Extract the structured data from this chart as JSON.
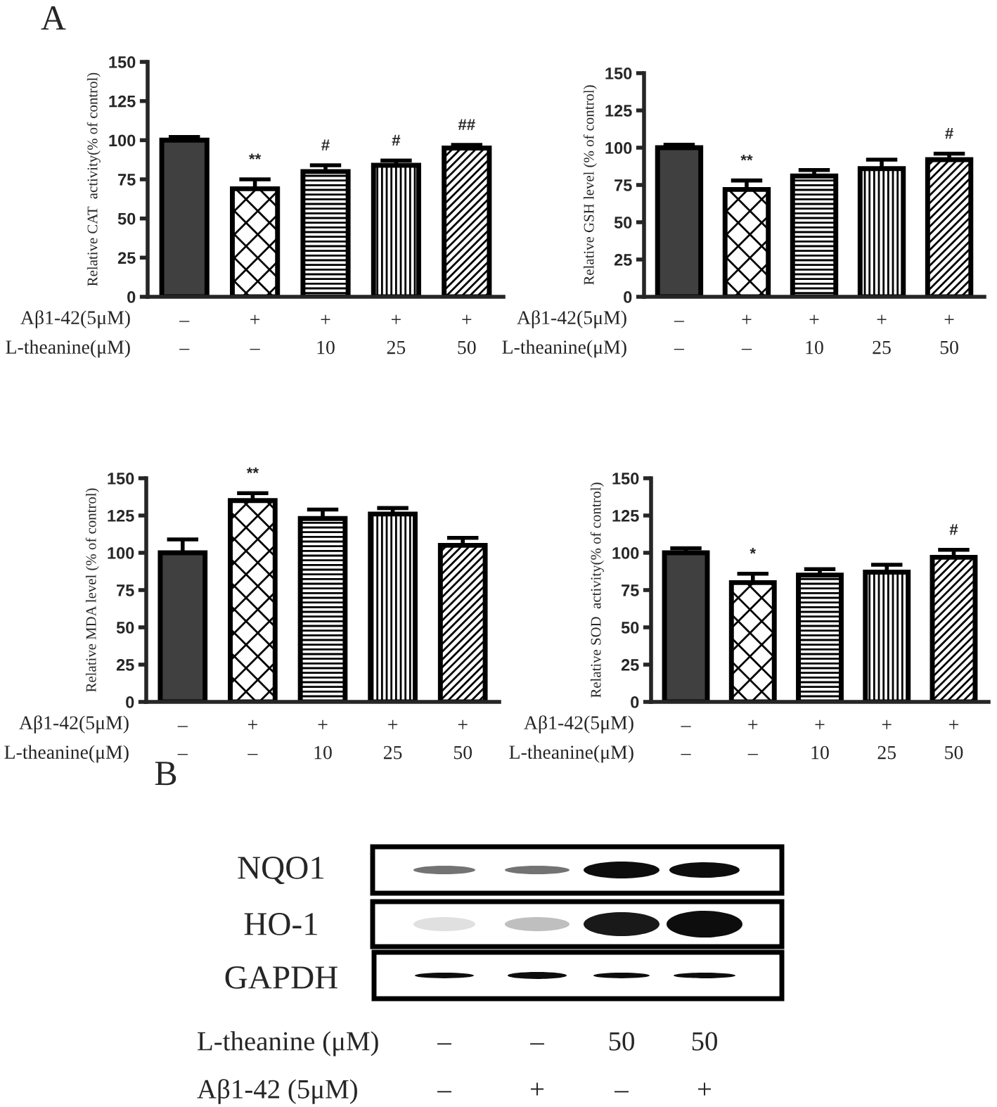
{
  "chart_data": [
    {
      "type": "bar",
      "title": "A",
      "ylabel": "Relative CAT  activity(% of control)",
      "categories": [
        "–\n–",
        "+\n–",
        "+\n10",
        "+\n25",
        "+\n50"
      ],
      "values": [
        100,
        69,
        80,
        84,
        95
      ],
      "errors": [
        [
          100,
          102
        ],
        [
          69,
          75
        ],
        [
          80,
          84
        ],
        [
          84,
          87
        ],
        [
          95,
          97
        ]
      ],
      "colors": [
        "#404040",
        "#000000",
        "#000000",
        "#000000",
        "#000000"
      ],
      "ylim": [
        0,
        150
      ],
      "yticks": [
        0,
        25,
        50,
        75,
        100,
        125,
        150
      ],
      "annotations": [
        "Aβ1-42(5μM)",
        "L-theanine(μM)",
        {
          "text": "**",
          "x": "+\n–",
          "y": 75
        },
        {
          "text": "#",
          "x": "+\n10",
          "y": 84
        },
        {
          "text": "#",
          "x": "+\n25",
          "y": 87
        },
        {
          "text": "##",
          "x": "+\n50",
          "y": 97
        }
      ]
    },
    {
      "type": "bar",
      "ylabel": "Relative GSH level (% of control)",
      "categories": [
        "–\n–",
        "+\n–",
        "+\n10",
        "+\n25",
        "+\n50"
      ],
      "values": [
        100,
        72,
        81,
        86,
        92
      ],
      "errors": [
        [
          100,
          102
        ],
        [
          72,
          78
        ],
        [
          81,
          85
        ],
        [
          86,
          92
        ],
        [
          92,
          96
        ]
      ],
      "colors": [
        "#404040",
        "#000000",
        "#000000",
        "#000000",
        "#000000"
      ],
      "ylim": [
        0,
        150
      ],
      "yticks": [
        0,
        25,
        50,
        75,
        100,
        125,
        150
      ],
      "annotations": [
        "Aβ1-42(5μM)",
        "L-theanine(μM)",
        {
          "text": "**",
          "x": "+\n–",
          "y": 78
        },
        {
          "text": "#",
          "x": "+\n50",
          "y": 96
        }
      ]
    },
    {
      "type": "bar",
      "ylabel": "Relative MDA level (% of control)",
      "categories": [
        "–\n–",
        "+\n–",
        "+\n10",
        "+\n25",
        "+\n50"
      ],
      "values": [
        100,
        135,
        123,
        126,
        105
      ],
      "errors": [
        [
          100,
          109
        ],
        [
          135,
          140
        ],
        [
          123,
          129
        ],
        [
          126,
          130
        ],
        [
          105,
          110
        ]
      ],
      "colors": [
        "#404040",
        "#000000",
        "#000000",
        "#000000",
        "#000000"
      ],
      "ylim": [
        0,
        150
      ],
      "yticks": [
        0,
        25,
        50,
        75,
        100,
        125,
        150
      ],
      "annotations": [
        "Aβ1-42(5μM)",
        "L-theanine(μM)",
        {
          "text": "**",
          "x": "+\n–",
          "y": 140
        }
      ]
    },
    {
      "type": "bar",
      "ylabel": "Relative SOD  activity(% of control)",
      "categories": [
        "–\n–",
        "+\n–",
        "+\n10",
        "+\n25",
        "+\n50"
      ],
      "values": [
        100,
        80,
        85,
        87,
        97
      ],
      "errors": [
        [
          100,
          103
        ],
        [
          80,
          86
        ],
        [
          85,
          89
        ],
        [
          87,
          92
        ],
        [
          97,
          102
        ]
      ],
      "colors": [
        "#404040",
        "#000000",
        "#000000",
        "#000000",
        "#000000"
      ],
      "ylim": [
        0,
        150
      ],
      "yticks": [
        0,
        25,
        50,
        75,
        100,
        125,
        150
      ],
      "annotations": [
        "Aβ1-42(5μM)",
        "L-theanine(μM)",
        {
          "text": "*",
          "x": "+\n–",
          "y": 86
        },
        {
          "text": "#",
          "x": "+\n50",
          "y": 102
        }
      ]
    },
    {
      "type": "other",
      "title": "B",
      "annotations": [
        "NQO1",
        "HO-1",
        "GAPDH",
        "L-theanine (μM)",
        "–",
        "–",
        "50",
        "50",
        "Aβ1-42 (5μM)",
        "–",
        "+",
        "–",
        "+"
      ]
    }
  ]
}
